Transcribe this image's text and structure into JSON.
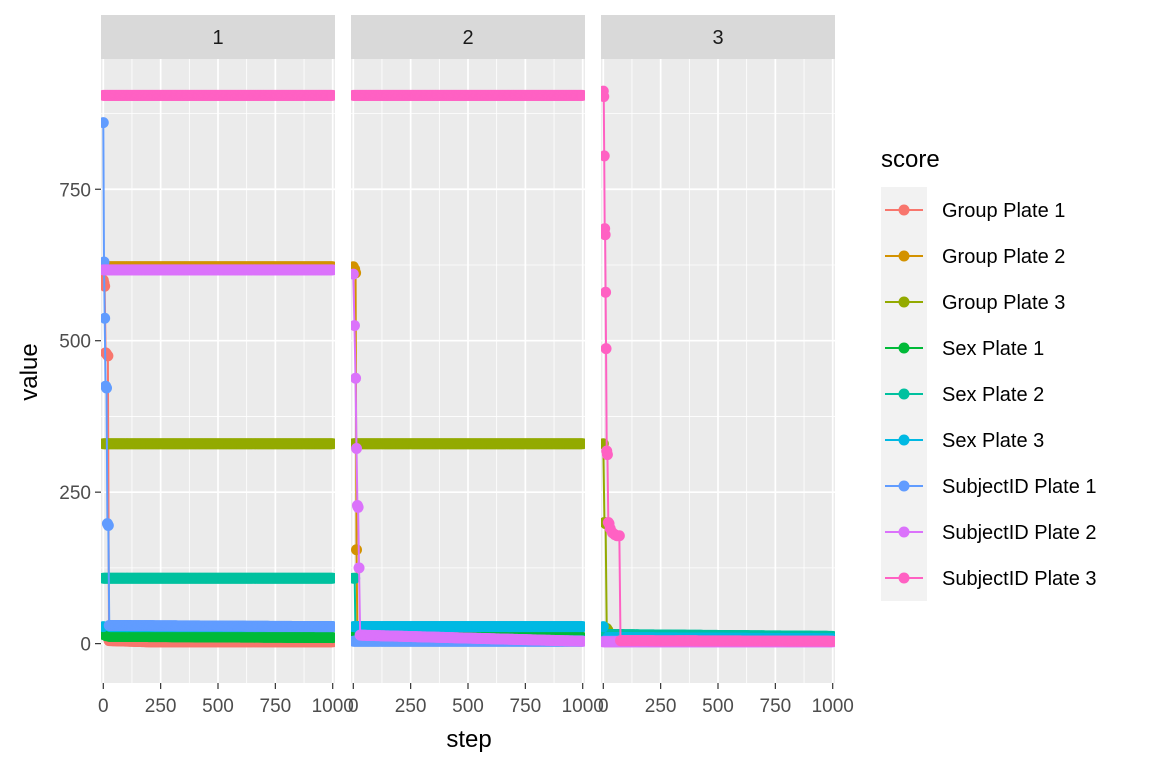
{
  "chart_data": {
    "type": "line",
    "xlabel": "step",
    "ylabel": "value",
    "xlim": [
      -10,
      1010
    ],
    "ylim": [
      -65,
      965
    ],
    "x_ticks": [
      0,
      250,
      500,
      750,
      1000
    ],
    "x_tick_labels": [
      "0",
      "250",
      "500",
      "750",
      "1000"
    ],
    "y_ticks": [
      0,
      250,
      500,
      750
    ],
    "y_tick_labels": [
      "0",
      "250",
      "500",
      "750"
    ],
    "grid": true,
    "legend_title": "score",
    "legend_position": "right",
    "facets": [
      {
        "label": "1",
        "series": [
          {
            "name": "Group Plate 1",
            "points": [
              [
                0,
                600
              ],
              [
                3,
                595
              ],
              [
                6,
                590
              ],
              [
                10,
                480
              ],
              [
                14,
                478
              ],
              [
                20,
                475
              ],
              [
                25,
                5
              ],
              [
                200,
                3
              ],
              [
                1000,
                3
              ]
            ]
          },
          {
            "name": "Group Plate 2",
            "points": [
              [
                0,
                622
              ],
              [
                1000,
                622
              ]
            ]
          },
          {
            "name": "Group Plate 3",
            "points": [
              [
                0,
                330
              ],
              [
                1000,
                330
              ]
            ]
          },
          {
            "name": "Sex Plate 1",
            "points": [
              [
                0,
                15
              ],
              [
                12,
                13
              ],
              [
                25,
                12
              ],
              [
                1000,
                10
              ]
            ]
          },
          {
            "name": "Sex Plate 2",
            "points": [
              [
                0,
                108
              ],
              [
                1000,
                108
              ]
            ]
          },
          {
            "name": "Sex Plate 3",
            "points": [
              [
                0,
                28
              ],
              [
                30,
                28
              ],
              [
                1000,
                28
              ]
            ]
          },
          {
            "name": "SubjectID Plate 1",
            "points": [
              [
                0,
                860
              ],
              [
                3,
                630
              ],
              [
                6,
                537
              ],
              [
                10,
                425
              ],
              [
                14,
                422
              ],
              [
                18,
                198
              ],
              [
                22,
                195
              ],
              [
                26,
                30
              ],
              [
                1000,
                28
              ]
            ]
          },
          {
            "name": "SubjectID Plate 2",
            "points": [
              [
                0,
                617
              ],
              [
                1000,
                617
              ]
            ]
          },
          {
            "name": "SubjectID Plate 3",
            "points": [
              [
                0,
                905
              ],
              [
                1000,
                905
              ]
            ]
          }
        ]
      },
      {
        "label": "2",
        "series": [
          {
            "name": "Group Plate 1",
            "points": [
              [
                0,
                6
              ],
              [
                1000,
                6
              ]
            ]
          },
          {
            "name": "Group Plate 2",
            "points": [
              [
                0,
                622
              ],
              [
                6,
                618
              ],
              [
                10,
                612
              ],
              [
                14,
                155
              ],
              [
                18,
                15
              ],
              [
                1000,
                10
              ]
            ]
          },
          {
            "name": "Group Plate 3",
            "points": [
              [
                0,
                330
              ],
              [
                1000,
                330
              ]
            ]
          },
          {
            "name": "Sex Plate 1",
            "points": [
              [
                0,
                15
              ],
              [
                1000,
                10
              ]
            ]
          },
          {
            "name": "Sex Plate 2",
            "points": [
              [
                0,
                108
              ],
              [
                6,
                108
              ],
              [
                10,
                5
              ],
              [
                1000,
                5
              ]
            ]
          },
          {
            "name": "Sex Plate 3",
            "points": [
              [
                0,
                28
              ],
              [
                1000,
                28
              ]
            ]
          },
          {
            "name": "SubjectID Plate 1",
            "points": [
              [
                0,
                4
              ],
              [
                1000,
                4
              ]
            ]
          },
          {
            "name": "SubjectID Plate 2",
            "points": [
              [
                0,
                610
              ],
              [
                5,
                525
              ],
              [
                10,
                438
              ],
              [
                14,
                322
              ],
              [
                18,
                228
              ],
              [
                21,
                225
              ],
              [
                25,
                125
              ],
              [
                30,
                14
              ],
              [
                1000,
                4
              ]
            ]
          },
          {
            "name": "SubjectID Plate 3",
            "points": [
              [
                0,
                905
              ],
              [
                1000,
                905
              ]
            ]
          }
        ]
      },
      {
        "label": "3",
        "series": [
          {
            "name": "Group Plate 1",
            "points": [
              [
                0,
                6
              ],
              [
                1000,
                6
              ]
            ]
          },
          {
            "name": "Group Plate 2",
            "points": [
              [
                0,
                5
              ],
              [
                1000,
                5
              ]
            ]
          },
          {
            "name": "Group Plate 3",
            "points": [
              [
                0,
                330
              ],
              [
                5,
                200
              ],
              [
                10,
                198
              ],
              [
                15,
                25
              ],
              [
                20,
                22
              ],
              [
                25,
                12
              ],
              [
                1000,
                10
              ]
            ]
          },
          {
            "name": "Sex Plate 1",
            "points": [
              [
                0,
                15
              ],
              [
                1000,
                10
              ]
            ]
          },
          {
            "name": "Sex Plate 2",
            "points": [
              [
                0,
                15
              ],
              [
                1000,
                12
              ]
            ]
          },
          {
            "name": "Sex Plate 3",
            "points": [
              [
                0,
                28
              ],
              [
                20,
                10
              ],
              [
                1000,
                8
              ]
            ]
          },
          {
            "name": "SubjectID Plate 1",
            "points": [
              [
                0,
                4
              ],
              [
                1000,
                4
              ]
            ]
          },
          {
            "name": "SubjectID Plate 2",
            "points": [
              [
                0,
                3
              ],
              [
                1000,
                3
              ]
            ]
          },
          {
            "name": "SubjectID Plate 3",
            "points": [
              [
                0,
                912
              ],
              [
                2,
                903
              ],
              [
                4,
                805
              ],
              [
                6,
                685
              ],
              [
                8,
                675
              ],
              [
                10,
                580
              ],
              [
                12,
                487
              ],
              [
                15,
                318
              ],
              [
                18,
                312
              ],
              [
                22,
                200
              ],
              [
                25,
                198
              ],
              [
                30,
                190
              ],
              [
                40,
                183
              ],
              [
                50,
                180
              ],
              [
                60,
                178
              ],
              [
                70,
                178
              ],
              [
                75,
                5
              ],
              [
                1000,
                4
              ]
            ]
          }
        ]
      }
    ],
    "legend": [
      {
        "name": "Group Plate 1",
        "color": "#F8766D"
      },
      {
        "name": "Group Plate 2",
        "color": "#D39200"
      },
      {
        "name": "Group Plate 3",
        "color": "#93AA00"
      },
      {
        "name": "Sex Plate 1",
        "color": "#00BA38"
      },
      {
        "name": "Sex Plate 2",
        "color": "#00C19F"
      },
      {
        "name": "Sex Plate 3",
        "color": "#00B9E3"
      },
      {
        "name": "SubjectID Plate 1",
        "color": "#619CFF"
      },
      {
        "name": "SubjectID Plate 2",
        "color": "#DB72FB"
      },
      {
        "name": "SubjectID Plate 3",
        "color": "#FF61C3"
      }
    ]
  }
}
